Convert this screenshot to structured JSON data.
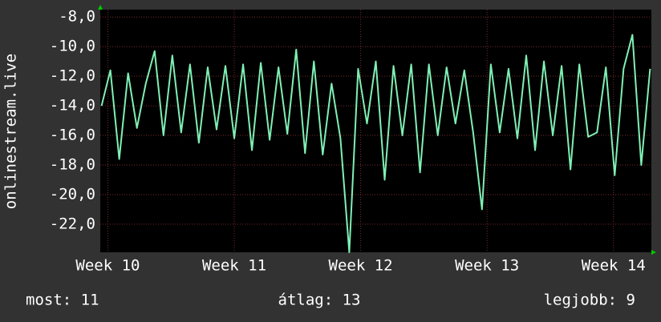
{
  "chart_data": {
    "type": "line",
    "y_label": "onlinestream.live",
    "x": [
      9.95,
      10.02,
      10.09,
      10.16,
      10.23,
      10.3,
      10.37,
      10.44,
      10.51,
      10.58,
      10.65,
      10.72,
      10.79,
      10.86,
      10.93,
      11.0,
      11.07,
      11.14,
      11.21,
      11.28,
      11.35,
      11.42,
      11.49,
      11.56,
      11.63,
      11.7,
      11.77,
      11.84,
      11.91,
      11.98,
      12.05,
      12.12,
      12.19,
      12.26,
      12.33,
      12.4,
      12.47,
      12.54,
      12.61,
      12.68,
      12.75,
      12.82,
      12.89,
      12.96,
      13.03,
      13.1,
      13.17,
      13.24,
      13.31,
      13.38,
      13.45,
      13.52,
      13.59,
      13.66,
      13.73,
      13.8,
      13.87,
      13.94,
      14.01,
      14.08,
      14.15,
      14.22,
      14.29
    ],
    "series": [
      {
        "color": "#7ff0b4",
        "values": [
          -14,
          -11.6,
          -17.6,
          -11.8,
          -15.5,
          -12.5,
          -10.3,
          -16,
          -10.6,
          -15.8,
          -11.2,
          -16.5,
          -11.4,
          -15.6,
          -11.3,
          -16.2,
          -11.2,
          -17,
          -11.1,
          -16.3,
          -11.4,
          -15.9,
          -10.2,
          -17.2,
          -11,
          -17.3,
          -12.5,
          -16.2,
          -23.9,
          -11.5,
          -15.2,
          -11,
          -19,
          -11.3,
          -16,
          -11.2,
          -18.5,
          -11.2,
          -16,
          -11.4,
          -15.2,
          -11.6,
          -15.8,
          -21,
          -11.2,
          -15.8,
          -11.5,
          -16.2,
          -10.6,
          -17,
          -11,
          -16,
          -11.3,
          -18.3,
          -11.2,
          -16.1,
          -15.8,
          -11.4,
          -18.7,
          -11.5,
          -9.2,
          -18,
          -11.5
        ]
      }
    ],
    "xlim": [
      9.94,
      14.3
    ],
    "xticks": [
      {
        "value": 10,
        "label": "Week 10"
      },
      {
        "value": 11,
        "label": "Week 11"
      },
      {
        "value": 12,
        "label": "Week 12"
      },
      {
        "value": 13,
        "label": "Week 13"
      },
      {
        "value": 14,
        "label": "Week 14"
      }
    ],
    "ylim": [
      -23.9,
      -7.5
    ],
    "yticks": [
      {
        "value": -8,
        "label": "-8,0"
      },
      {
        "value": -10,
        "label": "-10,0"
      },
      {
        "value": -12,
        "label": "-12,0"
      },
      {
        "value": -14,
        "label": "-14,0"
      },
      {
        "value": -16,
        "label": "-16,0"
      },
      {
        "value": -18,
        "label": "-18,0"
      },
      {
        "value": -20,
        "label": "-20,0"
      },
      {
        "value": -22,
        "label": "-22,0"
      }
    ],
    "grid": true,
    "footer": [
      "most: 11",
      "átlag: 13",
      "legjobb: 9"
    ]
  }
}
